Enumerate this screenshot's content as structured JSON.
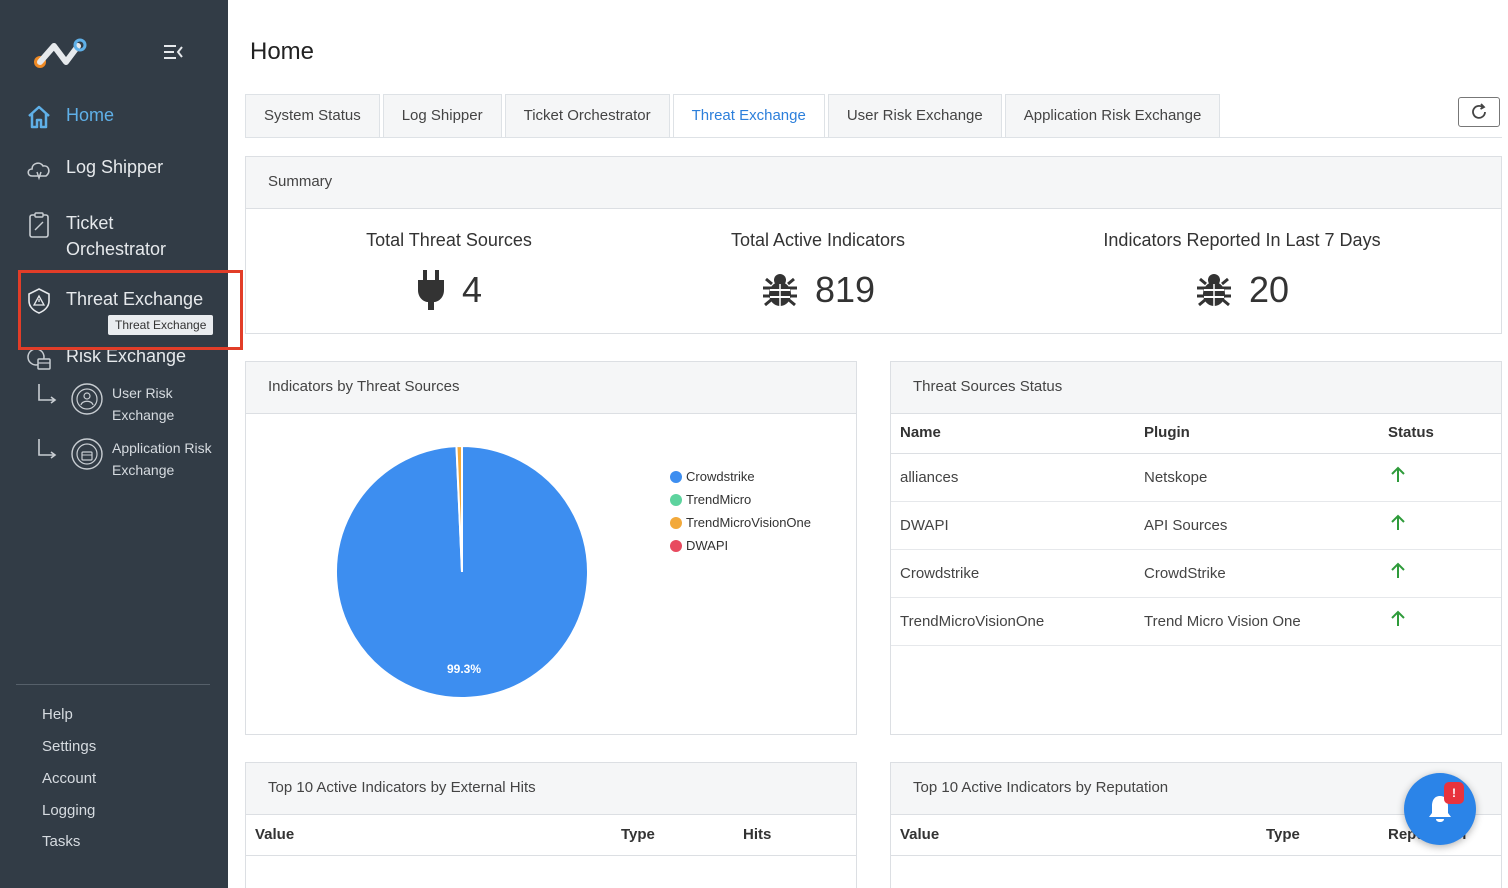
{
  "sidebar": {
    "nav": [
      {
        "label": "Home"
      },
      {
        "label": "Log Shipper"
      },
      {
        "label": "Ticket Orchestrator"
      },
      {
        "label": "Threat Exchange"
      },
      {
        "label": "Risk Exchange"
      }
    ],
    "tooltip": "Threat Exchange",
    "sub": [
      {
        "label": "User Risk Exchange"
      },
      {
        "label": "Application Risk Exchange"
      }
    ],
    "links": [
      "Help",
      "Settings",
      "Account",
      "Logging",
      "Tasks"
    ]
  },
  "page": {
    "title": "Home"
  },
  "tabs": [
    {
      "label": "System Status"
    },
    {
      "label": "Log Shipper"
    },
    {
      "label": "Ticket Orchestrator"
    },
    {
      "label": "Threat Exchange",
      "active": true
    },
    {
      "label": "User Risk Exchange"
    },
    {
      "label": "Application Risk Exchange"
    }
  ],
  "summary": {
    "title": "Summary",
    "stats": [
      {
        "label": "Total Threat Sources",
        "value": "4",
        "icon": "plug-icon"
      },
      {
        "label": "Total Active Indicators",
        "value": "819",
        "icon": "bug-icon"
      },
      {
        "label": "Indicators Reported In Last 7 Days",
        "value": "20",
        "icon": "bug-icon"
      }
    ]
  },
  "pie_card": {
    "title": "Indicators by Threat Sources"
  },
  "chart_data": {
    "type": "pie",
    "title": "",
    "labels": [
      "Crowdstrike",
      "TrendMicro",
      "TrendMicroVisionOne",
      "DWAPI"
    ],
    "values": [
      99.3,
      0,
      0.7,
      0
    ],
    "colors": [
      "#3d8ef0",
      "#5dd39e",
      "#f2a93b",
      "#e84a5f"
    ],
    "data_label": "99.3%",
    "legend_position": "right"
  },
  "sources_status": {
    "title": "Threat Sources Status",
    "columns": [
      "Name",
      "Plugin",
      "Status"
    ],
    "rows": [
      {
        "name": "alliances",
        "plugin": "Netskope",
        "status": "up"
      },
      {
        "name": "DWAPI",
        "plugin": "API Sources",
        "status": "up"
      },
      {
        "name": "Crowdstrike",
        "plugin": "CrowdStrike",
        "status": "up"
      },
      {
        "name": "TrendMicroVisionOne",
        "plugin": "Trend Micro Vision One",
        "status": "up"
      }
    ],
    "status_color": "#2e9b3a"
  },
  "hits_card": {
    "title": "Top 10 Active Indicators by External Hits",
    "columns": [
      "Value",
      "Type",
      "Hits"
    ]
  },
  "rep_card": {
    "title": "Top 10 Active Indicators by Reputation",
    "columns": [
      "Value",
      "Type",
      "Reputation"
    ]
  },
  "notifications": {
    "badge": "!"
  }
}
